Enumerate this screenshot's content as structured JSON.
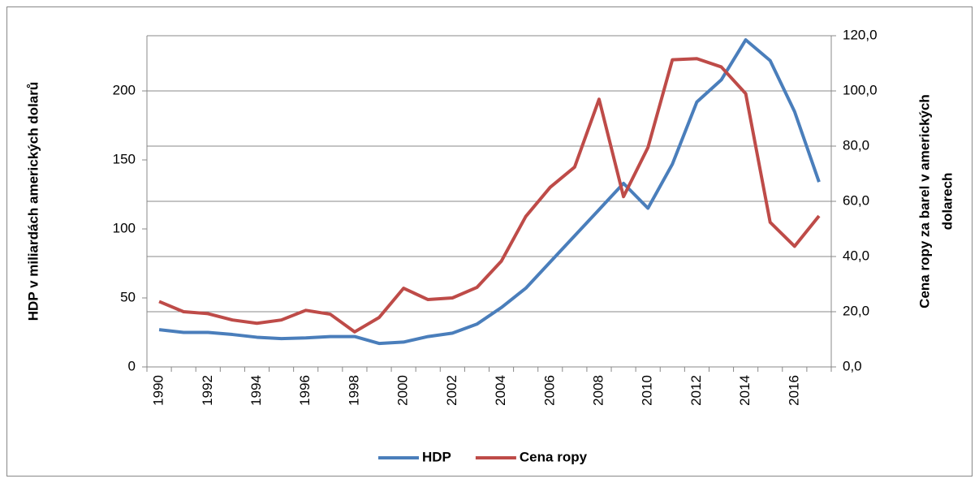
{
  "chart_data": {
    "type": "line",
    "ylabel": "HDP v miliardách amerických dolarů",
    "y2label": [
      "Cena ropy za barel v amerických",
      "dolarech"
    ],
    "categories": [
      "1990",
      null,
      "1992",
      null,
      "1994",
      null,
      "1996",
      null,
      "1998",
      null,
      "2000",
      null,
      "2002",
      null,
      "2004",
      null,
      "2006",
      null,
      "2008",
      null,
      "2010",
      null,
      "2012",
      null,
      "2014",
      null,
      "2016",
      null
    ],
    "series": [
      {
        "name": "HDP",
        "color": "#4a7ebb",
        "values": [
          27,
          25,
          25,
          23.5,
          21.5,
          20.5,
          21,
          22,
          22,
          17,
          18,
          22,
          24.5,
          31,
          43,
          57,
          76,
          95,
          114,
          133,
          115,
          147,
          192,
          208,
          237,
          222,
          185,
          134
        ]
      },
      {
        "name": "Cena ropy",
        "color": "#be4b48",
        "axis": "y2",
        "values": [
          23.7,
          20,
          19.3,
          17,
          15.8,
          17,
          20.5,
          19.1,
          12.7,
          17.9,
          28.5,
          24.4,
          25,
          28.8,
          38.3,
          54.5,
          65.1,
          72.4,
          97,
          61.7,
          79.5,
          111.3,
          111.7,
          108.7,
          99,
          52.4,
          43.7,
          54.7
        ]
      }
    ],
    "ylim": [
      0,
      240
    ],
    "yticks": [
      0,
      50,
      100,
      150,
      200
    ],
    "y2lim": [
      0,
      120
    ],
    "y2ticks": [
      {
        "value": 0,
        "label": "0,0"
      },
      {
        "value": 20,
        "label": "20,0"
      },
      {
        "value": 40,
        "label": "40,0"
      },
      {
        "value": 60,
        "label": "60,0"
      },
      {
        "value": 80,
        "label": "80,0"
      },
      {
        "value": 100,
        "label": "100,0"
      },
      {
        "value": 120,
        "label": "120,0"
      }
    ],
    "grid": true,
    "legend": "bottom"
  }
}
